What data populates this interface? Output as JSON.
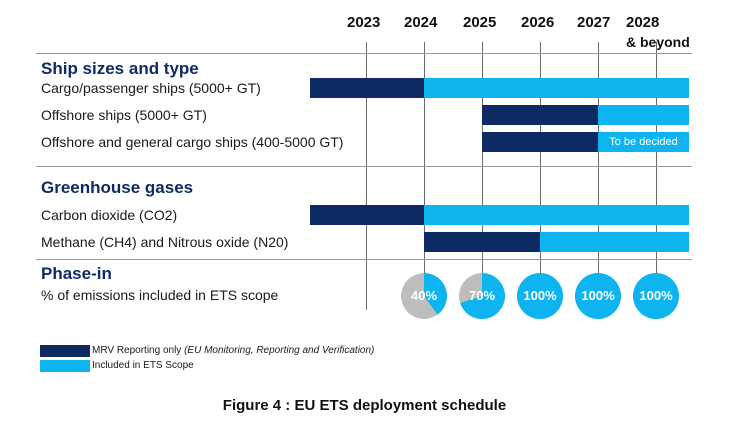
{
  "years": [
    "2023",
    "2024",
    "2025",
    "2026",
    "2027",
    "2028"
  ],
  "years_extra": "& beyond",
  "sections": {
    "ship": "Ship sizes and type",
    "ghg": "Greenhouse gases",
    "phase": "Phase-in"
  },
  "rows": {
    "cargo": "Cargo/passenger ships (5000+ GT)",
    "offshore": "Offshore ships (5000+ GT)",
    "general": "Offshore and general cargo ships (400-5000 GT)",
    "co2": "Carbon dioxide (CO2)",
    "methane": "Methane (CH4) and Nitrous oxide (N20)",
    "phase_desc": "% of emissions included in ETS scope"
  },
  "tbd_label": "To be decided",
  "phase_in": {
    "2024": {
      "label": "40%",
      "fraction": 0.4
    },
    "2025": {
      "label": "70%",
      "fraction": 0.7
    },
    "2026": {
      "label": "100%",
      "fraction": 1.0
    },
    "2027": {
      "label": "100%",
      "fraction": 1.0
    },
    "2028": {
      "label": "100%",
      "fraction": 1.0
    }
  },
  "legend": {
    "mrv_main": "MRV Reporting only ",
    "mrv_detail": "(EU Monitoring, Reporting and Verification)",
    "ets": "Included in ETS Scope"
  },
  "caption": "Figure 4 : EU ETS deployment schedule",
  "colors": {
    "mrv": "#0d2a63",
    "ets": "#0eb4ef",
    "pending": "#bdbdbd"
  }
}
